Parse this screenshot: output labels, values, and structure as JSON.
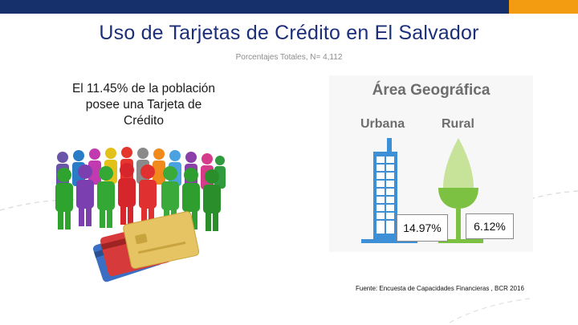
{
  "slide": {
    "title": "Uso de Tarjetas de Crédito en El Salvador",
    "subtitle": "Porcentajes Totales, N= 4,112",
    "stat_text": "El 11.45% de la población posee una Tarjeta de Crédito",
    "source": "Fuente: Encuesta de Capacidades Financieras , BCR 2016"
  },
  "geo": {
    "title": "Área Geográfica",
    "urban_label": "Urbana",
    "rural_label": "Rural",
    "urban_value": "14.97%",
    "rural_value": "6.12%"
  },
  "colors": {
    "header_bar": "#16306b",
    "header_accent": "#f39c12",
    "title_text": "#1c2f7a",
    "urban_blue": "#3d8fd6",
    "rural_green": "#7dc142"
  },
  "illustration": {
    "people_icon": "people-crowd-icon",
    "cards_icon": "credit-cards-icon",
    "building_icon": "building-icon",
    "tree_icon": "tree-icon"
  }
}
